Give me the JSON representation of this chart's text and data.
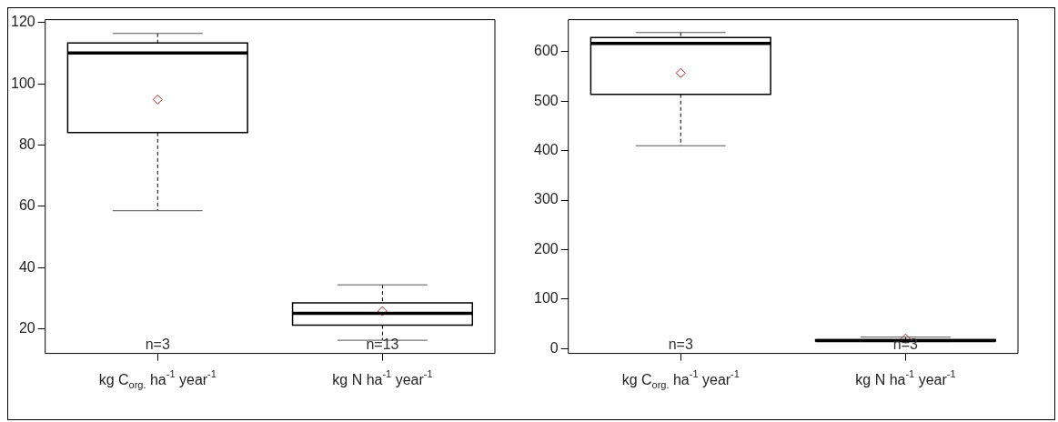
{
  "chart_data": [
    {
      "type": "box",
      "categories": [
        "kg C$_{org.}$ ha$^{-1}$ year$^{-1}$",
        "kg N ha$^{-1}$ year$^{-1}$"
      ],
      "ylim": [
        12,
        121
      ],
      "yticks": [
        20,
        40,
        60,
        80,
        100,
        120
      ],
      "series": [
        {
          "color": "#000000",
          "boxes": [
            {
              "low": 58.6,
              "q1": 84.1,
              "median": 110.1,
              "q3": 113.4,
              "high": 116.5,
              "mean": 94.9
            },
            {
              "low": 16.3,
              "q1": 21.2,
              "median": 25.1,
              "q3": 28.5,
              "high": 34.4,
              "mean": 25.8
            }
          ]
        }
      ],
      "annotations": [
        "n=3",
        "n=13"
      ]
    },
    {
      "type": "box",
      "categories": [
        "kg C$_{org.}$ ha$^{-1}$ year$^{-1}$",
        "kg N ha$^{-1}$ year$^{-1}$"
      ],
      "ylim": [
        -10,
        665
      ],
      "yticks": [
        0,
        100,
        200,
        300,
        400,
        500,
        600
      ],
      "series": [
        {
          "color": "#000000",
          "boxes": [
            {
              "low": 410,
              "q1": 514,
              "median": 617,
              "q3": 629,
              "high": 639,
              "mean": 557
            },
            {
              "low": 14,
              "q1": 15,
              "median": 16,
              "q3": 18,
              "high": 23,
              "mean": 20
            }
          ]
        }
      ],
      "annotations": [
        "n=3",
        "n=3"
      ]
    }
  ]
}
